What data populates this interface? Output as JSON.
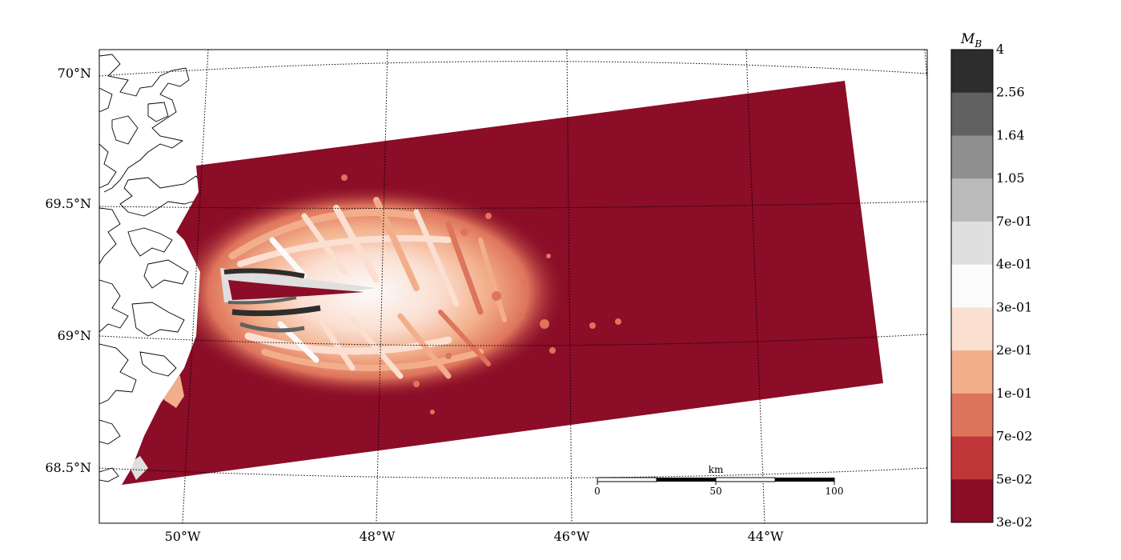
{
  "map": {
    "lat_labels": [
      "70°N",
      "69.5°N",
      "69°N",
      "68.5°N"
    ],
    "lon_labels": [
      "50°W",
      "48°W",
      "46°W",
      "44°W"
    ],
    "field_color": "#8b0d27",
    "coastline_color": "#000000",
    "graticule_style": "dotted"
  },
  "colorbar": {
    "title_main": "M",
    "title_sub": "B",
    "labels": [
      "4",
      "2.56",
      "1.64",
      "1.05",
      "7e-01",
      "4e-01",
      "3e-01",
      "2e-01",
      "1e-01",
      "7e-02",
      "5e-02",
      "3e-02"
    ],
    "colors": [
      "#2d2d2d",
      "#616161",
      "#8f8f8f",
      "#bababa",
      "#dfdfdf",
      "#fbfbfb",
      "#fbdfd1",
      "#f2ae8a",
      "#de745c",
      "#c13639",
      "#8b0d27"
    ]
  },
  "scale_bar": {
    "unit": "km",
    "ticks": [
      "0",
      "50",
      "100"
    ]
  }
}
